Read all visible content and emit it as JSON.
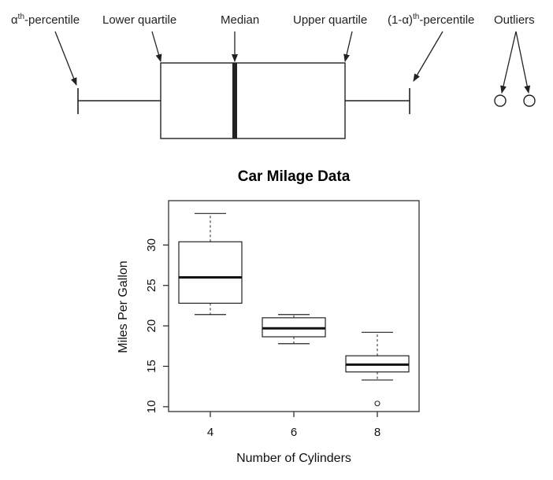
{
  "diagram": {
    "labels": {
      "alpha_percentile": {
        "base": "α",
        "sup": "th",
        "rest": "-percentile"
      },
      "lower_quartile": "Lower quartile",
      "median": "Median",
      "upper_quartile": "Upper quartile",
      "one_minus_alpha_percentile": {
        "base": "(1-α)",
        "sup": "th",
        "rest": "-percentile"
      },
      "outliers": "Outliers"
    }
  },
  "chart_data": {
    "type": "boxplot",
    "title": "Car Milage Data",
    "xlabel": "Number of Cylinders",
    "ylabel": "Miles Per Gallon",
    "categories": [
      "4",
      "6",
      "8"
    ],
    "yticks": [
      10,
      15,
      20,
      25,
      30
    ],
    "ylim": [
      9.5,
      35
    ],
    "boxes": [
      {
        "category": "4",
        "whisker_low": 21.4,
        "q1": 22.8,
        "median": 26.0,
        "q3": 30.4,
        "whisker_high": 33.9,
        "outliers": []
      },
      {
        "category": "6",
        "whisker_low": 17.8,
        "q1": 18.65,
        "median": 19.7,
        "q3": 21.0,
        "whisker_high": 21.4,
        "outliers": []
      },
      {
        "category": "8",
        "whisker_low": 13.3,
        "q1": 14.3,
        "median": 15.2,
        "q3": 16.3,
        "whisker_high": 19.2,
        "outliers": [
          10.4
        ]
      }
    ]
  }
}
